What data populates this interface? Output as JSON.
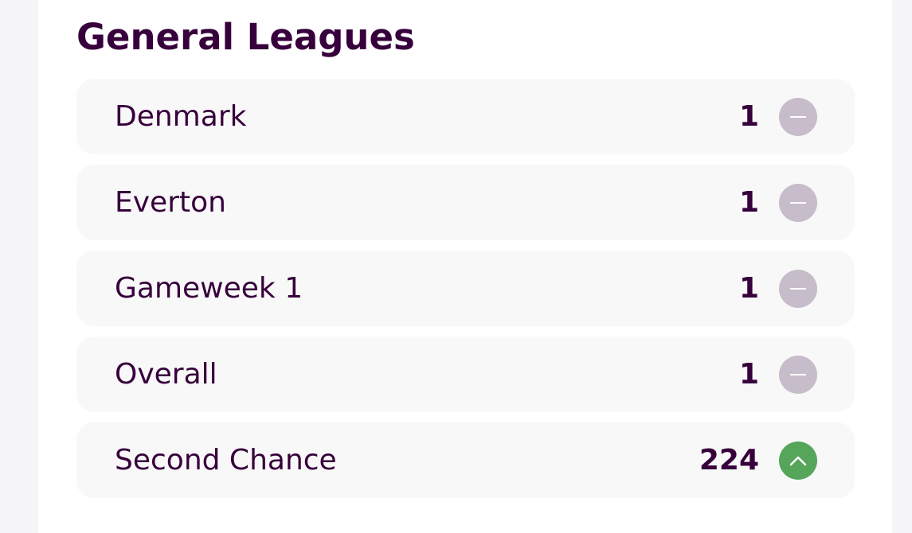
{
  "section": {
    "title": "General Leagues"
  },
  "leagues": [
    {
      "name": "Denmark",
      "rank": "1",
      "movement": "same"
    },
    {
      "name": "Everton",
      "rank": "1",
      "movement": "same"
    },
    {
      "name": "Gameweek 1",
      "rank": "1",
      "movement": "same"
    },
    {
      "name": "Overall",
      "rank": "1",
      "movement": "same"
    },
    {
      "name": "Second Chance",
      "rank": "224",
      "movement": "up"
    }
  ],
  "icons": {
    "same": "dash-icon",
    "up": "chevron-up-icon"
  },
  "colors": {
    "text": "#37003c",
    "row_background": "#f8f8f8",
    "movement_same": "#c7bcca",
    "movement_up": "#55a55a"
  }
}
